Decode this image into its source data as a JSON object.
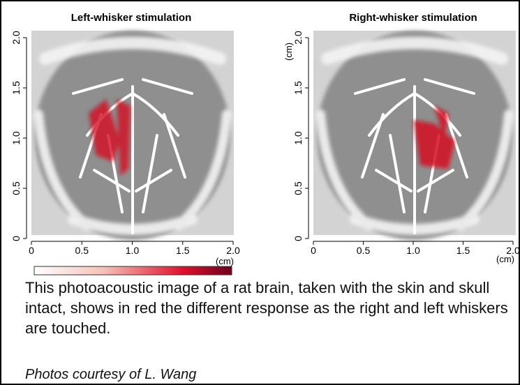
{
  "panels": [
    {
      "title": "Left-whisker stimulation",
      "xticks": [
        "0",
        "0.5",
        "1.0",
        "1.5",
        "2.0"
      ],
      "yticks": [
        "0",
        "0.5",
        "1.0",
        "1.5",
        "2.0"
      ],
      "x_unit": "(cm)"
    },
    {
      "title": "Right-whisker stimulation",
      "xticks": [
        "0",
        "0.5",
        "1.0",
        "1.5",
        "2.0"
      ],
      "yticks": [
        "0",
        "0.5",
        "1.0",
        "1.5",
        "2.0"
      ],
      "x_unit": "(cm)",
      "y_unit": "(cm)"
    }
  ],
  "caption": "This photoacoustic image of a rat brain, taken with the skin and skull intact, shows in red the different response as the right and left whiskers are touched.",
  "credit": "Photos courtesy of L. Wang"
}
